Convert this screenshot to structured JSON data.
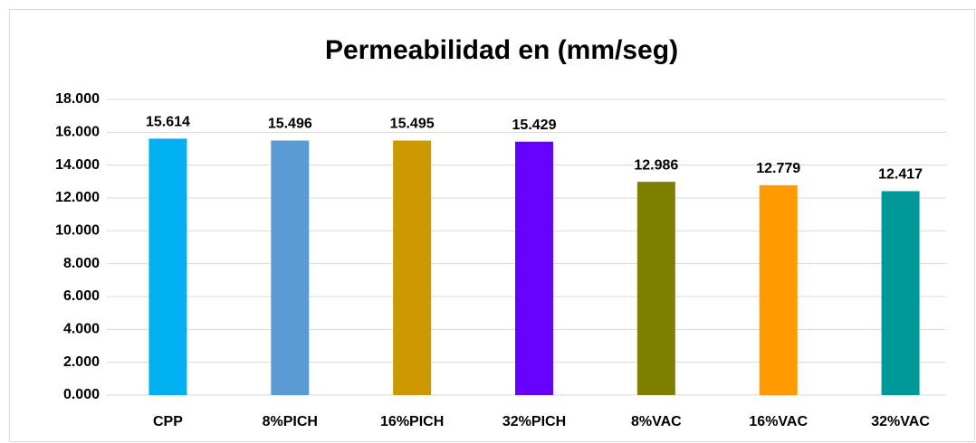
{
  "chart_data": {
    "type": "bar",
    "title": "Permeabilidad en (mm/seg)",
    "categories": [
      "CPP",
      "8%PICH",
      "16%PICH",
      "32%PICH",
      "8%VAC",
      "16%VAC",
      "32%VAC"
    ],
    "values": [
      15.614,
      15.496,
      15.495,
      15.429,
      12.986,
      12.779,
      12.417
    ],
    "colors": [
      "#00b0f0",
      "#5b9bd5",
      "#cc9900",
      "#6600ff",
      "#808000",
      "#ff9900",
      "#009999"
    ],
    "ylim": [
      0,
      18
    ],
    "yticks": [
      {
        "value": 0,
        "label": "0.000"
      },
      {
        "value": 2,
        "label": "2.000"
      },
      {
        "value": 4,
        "label": "4.000"
      },
      {
        "value": 6,
        "label": "6.000"
      },
      {
        "value": 8,
        "label": "8.000"
      },
      {
        "value": 10,
        "label": "10.000"
      },
      {
        "value": 12,
        "label": "12.000"
      },
      {
        "value": 14,
        "label": "14.000"
      },
      {
        "value": 16,
        "label": "16.000"
      },
      {
        "value": 18,
        "label": "18.000"
      }
    ],
    "grid": true
  }
}
